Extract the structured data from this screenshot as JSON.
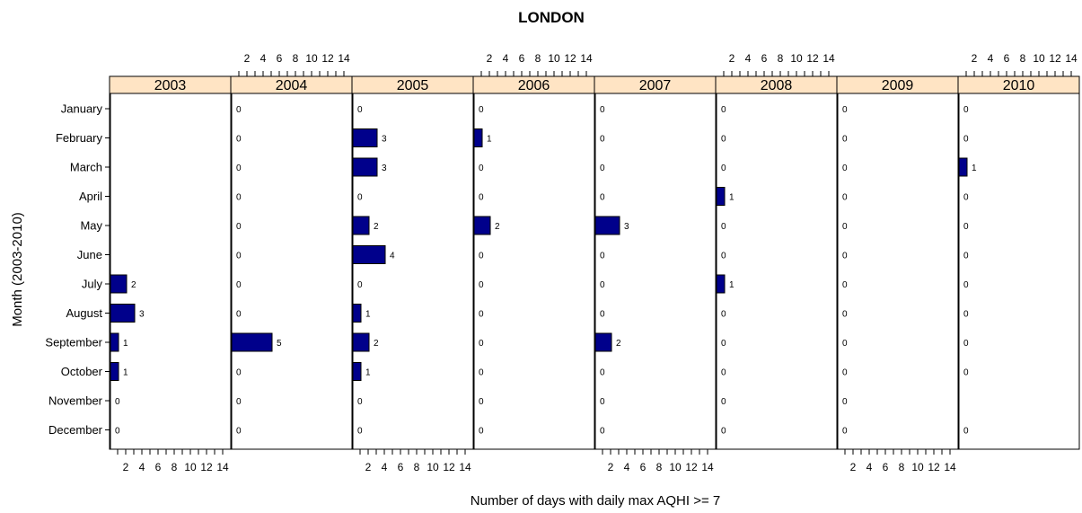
{
  "chart_data": {
    "type": "bar",
    "orientation": "horizontal",
    "title": "LONDON",
    "xlabel": "Number of days with daily max AQHI >= 7",
    "ylabel": "Month (2003-2010)",
    "xlim": [
      0,
      15
    ],
    "x_ticks": [
      "2",
      "4",
      "6",
      "8",
      "10",
      "12",
      "14"
    ],
    "bar_color": "#00008B",
    "strip_color": "#FFE4C4",
    "months": [
      "January",
      "February",
      "March",
      "April",
      "May",
      "June",
      "July",
      "August",
      "September",
      "October",
      "November",
      "December"
    ],
    "panels": [
      {
        "year": "2003",
        "values": [
          null,
          null,
          null,
          null,
          null,
          null,
          2,
          3,
          1,
          1,
          0,
          0
        ]
      },
      {
        "year": "2004",
        "values": [
          0,
          0,
          0,
          0,
          0,
          0,
          0,
          0,
          5,
          0,
          0,
          0
        ]
      },
      {
        "year": "2005",
        "values": [
          0,
          3,
          3,
          0,
          2,
          4,
          0,
          1,
          2,
          1,
          0,
          0
        ]
      },
      {
        "year": "2006",
        "values": [
          0,
          1,
          0,
          0,
          2,
          0,
          0,
          0,
          0,
          0,
          0,
          0
        ]
      },
      {
        "year": "2007",
        "values": [
          0,
          0,
          0,
          0,
          3,
          0,
          0,
          0,
          2,
          0,
          0,
          0
        ]
      },
      {
        "year": "2008",
        "values": [
          0,
          0,
          0,
          1,
          0,
          0,
          1,
          0,
          0,
          0,
          0,
          0
        ]
      },
      {
        "year": "2009",
        "values": [
          0,
          0,
          0,
          0,
          0,
          0,
          0,
          0,
          0,
          0,
          0,
          0
        ]
      },
      {
        "year": "2010",
        "values": [
          0,
          0,
          1,
          0,
          0,
          0,
          0,
          0,
          0,
          0,
          null,
          0
        ]
      }
    ]
  }
}
